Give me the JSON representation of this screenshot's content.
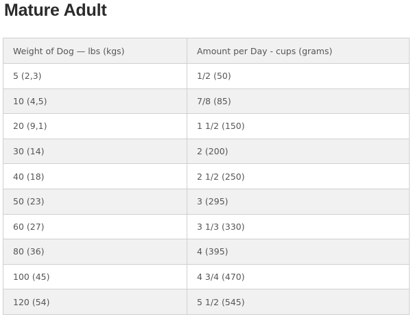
{
  "page_title": "Mature Adult",
  "table": {
    "headers": [
      "Weight of Dog — lbs (kgs)",
      "Amount per Day - cups (grams)"
    ],
    "rows": [
      [
        "5 (2,3)",
        "1/2 (50)"
      ],
      [
        "10 (4,5)",
        "7/8 (85)"
      ],
      [
        "20 (9,1)",
        "1 1/2 (150)"
      ],
      [
        "30 (14)",
        "2 (200)"
      ],
      [
        "40 (18)",
        "2 1/2 (250)"
      ],
      [
        "50 (23)",
        "3 (295)"
      ],
      [
        "60 (27)",
        "3 1/3 (330)"
      ],
      [
        "80 (36)",
        "4 (395)"
      ],
      [
        "100 (45)",
        "4 3/4 (470)"
      ],
      [
        "120 (54)",
        "5 1/2 (545)"
      ]
    ]
  }
}
